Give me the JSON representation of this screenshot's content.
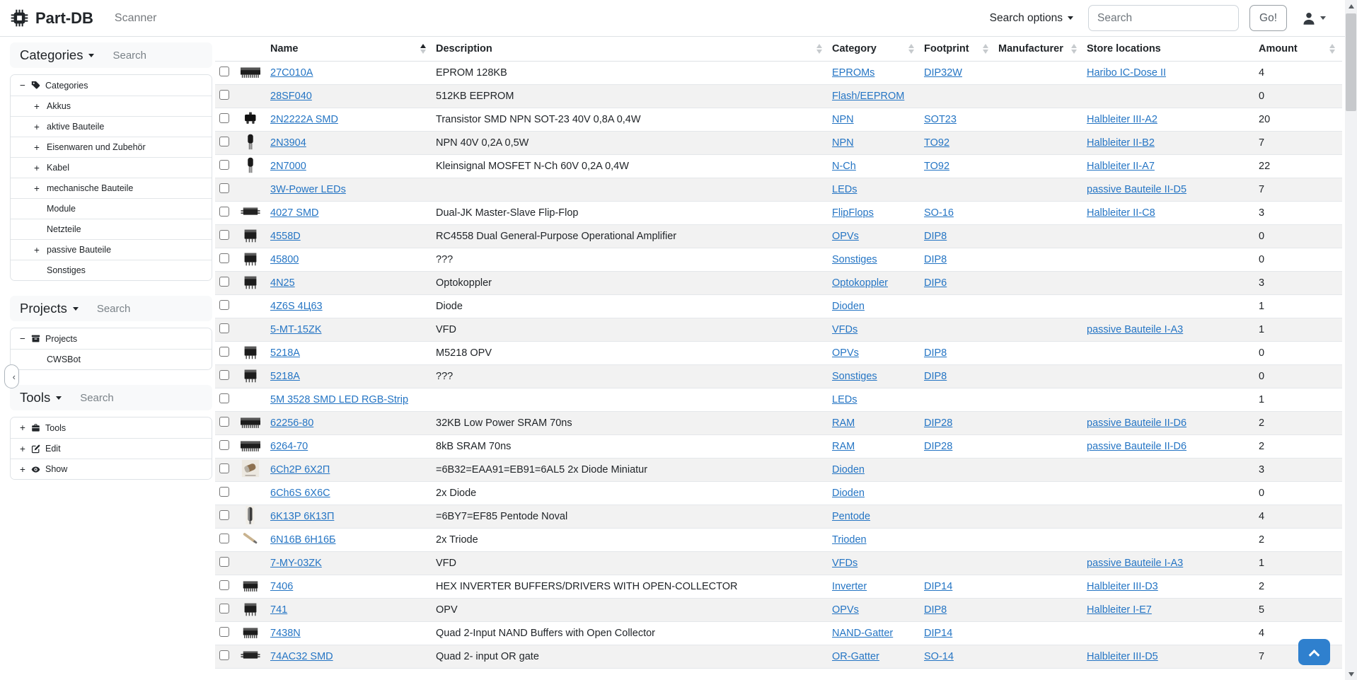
{
  "colors": {
    "link": "#2575c4",
    "scroll_top_button": "#2f80ce",
    "row_stripe": "#f2f2f2"
  },
  "navbar": {
    "brand": "Part-DB",
    "nav_items": [
      {
        "label": "Scanner"
      }
    ],
    "search_options_label": "Search options",
    "search_placeholder": "Search",
    "go_label": "Go!"
  },
  "sidebar": {
    "collapse_label": "‹",
    "sections": [
      {
        "title": "Categories",
        "search_placeholder": "Search",
        "items": [
          {
            "label": "Categories",
            "expander": "−",
            "icon": "tag-icon",
            "level": 0
          },
          {
            "label": "Akkus",
            "expander": "+",
            "level": 1
          },
          {
            "label": "aktive Bauteile",
            "expander": "+",
            "level": 1
          },
          {
            "label": "Eisenwaren und Zubehör",
            "expander": "+",
            "level": 1
          },
          {
            "label": "Kabel",
            "expander": "+",
            "level": 1
          },
          {
            "label": "mechanische Bauteile",
            "expander": "+",
            "level": 1
          },
          {
            "label": "Module",
            "expander": "",
            "level": 1
          },
          {
            "label": "Netzteile",
            "expander": "",
            "level": 1
          },
          {
            "label": "passive Bauteile",
            "expander": "+",
            "level": 1
          },
          {
            "label": "Sonstiges",
            "expander": "",
            "level": 1
          }
        ]
      },
      {
        "title": "Projects",
        "search_placeholder": "Search",
        "items": [
          {
            "label": "Projects",
            "expander": "−",
            "icon": "archive-icon",
            "level": 0
          },
          {
            "label": "CWSBot",
            "expander": "",
            "level": 1
          }
        ]
      },
      {
        "title": "Tools",
        "search_placeholder": "Search",
        "items": [
          {
            "label": "Tools",
            "expander": "+",
            "icon": "toolbox-icon",
            "level": 0
          },
          {
            "label": "Edit",
            "expander": "+",
            "icon": "pencil-square-icon",
            "level": 0
          },
          {
            "label": "Show",
            "expander": "+",
            "icon": "eye-icon",
            "level": 0
          }
        ]
      }
    ]
  },
  "table": {
    "columns": [
      {
        "key": "check",
        "label": "",
        "sort": null
      },
      {
        "key": "img",
        "label": "",
        "sort": null
      },
      {
        "key": "name",
        "label": "Name",
        "sort": "asc"
      },
      {
        "key": "description",
        "label": "Description",
        "sort": "none"
      },
      {
        "key": "category",
        "label": "Category",
        "sort": "none"
      },
      {
        "key": "footprint",
        "label": "Footprint",
        "sort": "none"
      },
      {
        "key": "manufacturer",
        "label": "Manufacturer",
        "sort": "none"
      },
      {
        "key": "store",
        "label": "Store locations",
        "sort": null
      },
      {
        "key": "amount",
        "label": "Amount",
        "sort": "none"
      }
    ],
    "rows": [
      {
        "image": "ic-dip-long",
        "name": "27C010A",
        "description": "EPROM 128KB",
        "category": "EPROMs",
        "footprint": "DIP32W",
        "manufacturer": "",
        "store_location": "Haribo IC-Dose II",
        "amount": "4"
      },
      {
        "image": null,
        "name": "28SF040",
        "description": "512KB EEPROM",
        "category": "Flash/EEPROM",
        "footprint": "",
        "manufacturer": "",
        "store_location": "",
        "amount": "0"
      },
      {
        "image": "sot23",
        "name": "2N2222A SMD",
        "description": "Transistor SMD NPN SOT-23 40V 0,8A 0,4W",
        "category": "NPN",
        "footprint": "SOT23",
        "manufacturer": "",
        "store_location": "Halbleiter III-A2",
        "amount": "20"
      },
      {
        "image": "to92",
        "name": "2N3904",
        "description": "NPN 40V 0,2A 0,5W",
        "category": "NPN",
        "footprint": "TO92",
        "manufacturer": "",
        "store_location": "Halbleiter II-B2",
        "amount": "7"
      },
      {
        "image": "to92",
        "name": "2N7000",
        "description": "Kleinsignal MOSFET N-Ch 60V 0,2A 0,4W",
        "category": "N-Ch",
        "footprint": "TO92",
        "manufacturer": "",
        "store_location": "Halbleiter II-A7",
        "amount": "22"
      },
      {
        "image": null,
        "name": "3W-Power LEDs",
        "description": "",
        "category": "LEDs",
        "footprint": "",
        "manufacturer": "",
        "store_location": "passive Bauteile II-D5",
        "amount": "7"
      },
      {
        "image": "ic-so",
        "name": "4027 SMD",
        "description": "Dual-JK Master-Slave Flip-Flop",
        "category": "FlipFlops",
        "footprint": "SO-16",
        "manufacturer": "",
        "store_location": "Halbleiter II-C8",
        "amount": "3"
      },
      {
        "image": "ic-dip",
        "name": "4558D",
        "description": "RC4558 Dual General-Purpose Operational Amplifier",
        "category": "OPVs",
        "footprint": "DIP8",
        "manufacturer": "",
        "store_location": "",
        "amount": "0"
      },
      {
        "image": "ic-dip",
        "name": "45800",
        "description": "???",
        "category": "Sonstiges",
        "footprint": "DIP8",
        "manufacturer": "",
        "store_location": "",
        "amount": "0"
      },
      {
        "image": "ic-dip",
        "name": "4N25",
        "description": "Optokoppler",
        "category": "Optokoppler",
        "footprint": "DIP6",
        "manufacturer": "",
        "store_location": "",
        "amount": "3"
      },
      {
        "image": null,
        "name": "4Z6S 4Ц63",
        "description": "Diode",
        "category": "Dioden",
        "footprint": "",
        "manufacturer": "",
        "store_location": "",
        "amount": "1"
      },
      {
        "image": null,
        "name": "5-MT-15ZK",
        "description": "VFD",
        "category": "VFDs",
        "footprint": "",
        "manufacturer": "",
        "store_location": "passive Bauteile I-A3",
        "amount": "1"
      },
      {
        "image": "ic-dip",
        "name": "5218A",
        "description": "M5218 OPV",
        "category": "OPVs",
        "footprint": "DIP8",
        "manufacturer": "",
        "store_location": "",
        "amount": "0"
      },
      {
        "image": "ic-dip",
        "name": "5218A",
        "description": "???",
        "category": "Sonstiges",
        "footprint": "DIP8",
        "manufacturer": "",
        "store_location": "",
        "amount": "0"
      },
      {
        "image": null,
        "name": "5M 3528 SMD LED RGB-Strip",
        "description": "",
        "category": "LEDs",
        "footprint": "",
        "manufacturer": "",
        "store_location": "",
        "amount": "1"
      },
      {
        "image": "ic-dip-long",
        "name": "62256-80",
        "description": "32KB Low Power SRAM 70ns",
        "category": "RAM",
        "footprint": "DIP28",
        "manufacturer": "",
        "store_location": "passive Bauteile II-D6",
        "amount": "2"
      },
      {
        "image": "ic-dip-long",
        "name": "6264-70",
        "description": "8kB SRAM 70ns",
        "category": "RAM",
        "footprint": "DIP28",
        "manufacturer": "",
        "store_location": "passive Bauteile II-D6",
        "amount": "2"
      },
      {
        "image": "tube-photo",
        "name": "6Ch2P 6Х2П",
        "description": "=6B32=EAA91=EB91=6AL5 2x Diode Miniatur",
        "category": "Dioden",
        "footprint": "",
        "manufacturer": "",
        "store_location": "",
        "amount": "3"
      },
      {
        "image": null,
        "name": "6Ch6S 6Х6С",
        "description": "2x Diode",
        "category": "Dioden",
        "footprint": "",
        "manufacturer": "",
        "store_location": "",
        "amount": "0"
      },
      {
        "image": "tube-vertical",
        "name": "6K13P 6К13П",
        "description": "=6BY7=EF85 Pentode Noval",
        "category": "Pentode",
        "footprint": "",
        "manufacturer": "",
        "store_location": "",
        "amount": "4"
      },
      {
        "image": "tube-diagonal",
        "name": "6N16B 6Н16Б",
        "description": "2x Triode",
        "category": "Trioden",
        "footprint": "",
        "manufacturer": "",
        "store_location": "",
        "amount": "2"
      },
      {
        "image": null,
        "name": "7-MY-03ZK",
        "description": "VFD",
        "category": "VFDs",
        "footprint": "",
        "manufacturer": "",
        "store_location": "passive Bauteile I-A3",
        "amount": "1"
      },
      {
        "image": "ic-dip-med",
        "name": "7406",
        "description": "HEX INVERTER BUFFERS/DRIVERS WITH OPEN-COLLECTOR",
        "category": "Inverter",
        "footprint": "DIP14",
        "manufacturer": "",
        "store_location": "Halbleiter III-D3",
        "amount": "2"
      },
      {
        "image": "ic-dip",
        "name": "741",
        "description": "OPV",
        "category": "OPVs",
        "footprint": "DIP8",
        "manufacturer": "",
        "store_location": "Halbleiter I-E7",
        "amount": "5"
      },
      {
        "image": "ic-dip-med",
        "name": "7438N",
        "description": "Quad 2-Input NAND Buffers with Open Collector",
        "category": "NAND-Gatter",
        "footprint": "DIP14",
        "manufacturer": "",
        "store_location": "",
        "amount": "4"
      },
      {
        "image": "ic-so",
        "name": "74AC32 SMD",
        "description": "Quad 2- input OR gate",
        "category": "OR-Gatter",
        "footprint": "SO-14",
        "manufacturer": "",
        "store_location": "Halbleiter III-D5",
        "amount": "7"
      }
    ]
  }
}
